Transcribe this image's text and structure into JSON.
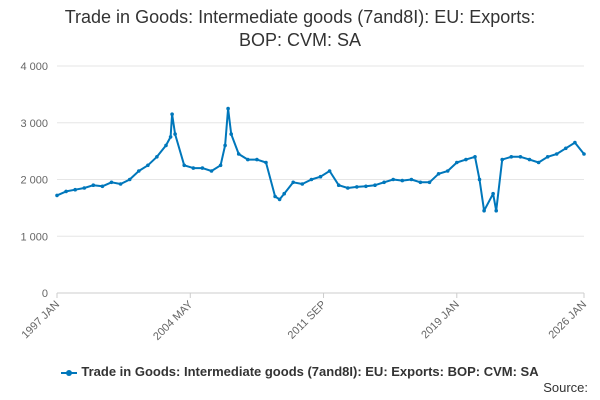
{
  "chart_data": {
    "type": "line",
    "title_lines": [
      "Trade in Goods: Intermediate goods (7and8I): EU: Exports:",
      "BOP: CVM: SA"
    ],
    "xlabel": "",
    "ylabel": "",
    "x_tick_labels": [
      "1997 JAN",
      "2004 MAY",
      "2011 SEP",
      "2019 JAN",
      "2026 JAN"
    ],
    "x_start": "1997 JAN",
    "x_end": "2026 JAN",
    "y_ticks": [
      0,
      1000,
      2000,
      3000,
      4000
    ],
    "y_tick_labels": [
      "0",
      "1 000",
      "2 000",
      "3 000",
      "4 000"
    ],
    "ylim": [
      0,
      4000
    ],
    "grid": true,
    "legend_position": "bottom",
    "series": [
      {
        "name": "Trade in Goods: Intermediate goods (7and8I): EU: Exports: BOP: CVM: SA",
        "color": "#0077bb",
        "x": [
          "1997-01",
          "1997-07",
          "1998-01",
          "1998-07",
          "1999-01",
          "1999-07",
          "2000-01",
          "2000-07",
          "2001-01",
          "2001-07",
          "2002-01",
          "2002-07",
          "2003-01",
          "2003-04",
          "2003-05",
          "2003-07",
          "2004-01",
          "2004-07",
          "2005-01",
          "2005-07",
          "2006-01",
          "2006-04",
          "2006-06",
          "2006-08",
          "2007-01",
          "2007-07",
          "2008-01",
          "2008-07",
          "2009-01",
          "2009-04",
          "2009-07",
          "2010-01",
          "2010-07",
          "2011-01",
          "2011-07",
          "2012-01",
          "2012-07",
          "2013-01",
          "2013-07",
          "2014-01",
          "2014-07",
          "2015-01",
          "2015-07",
          "2016-01",
          "2016-07",
          "2017-01",
          "2017-07",
          "2018-01",
          "2018-07",
          "2019-01",
          "2019-07",
          "2020-01",
          "2020-04",
          "2020-07",
          "2021-01",
          "2021-03",
          "2021-07",
          "2022-01",
          "2022-07",
          "2023-01",
          "2023-07",
          "2024-01",
          "2024-07",
          "2025-01",
          "2025-07",
          "2026-01"
        ],
        "values": [
          1720,
          1790,
          1820,
          1850,
          1900,
          1880,
          1950,
          1920,
          2000,
          2150,
          2250,
          2400,
          2600,
          2750,
          3150,
          2800,
          2250,
          2200,
          2200,
          2150,
          2250,
          2600,
          3250,
          2800,
          2450,
          2350,
          2350,
          2300,
          1700,
          1650,
          1750,
          1950,
          1920,
          2000,
          2050,
          2150,
          1900,
          1850,
          1870,
          1880,
          1900,
          1950,
          2000,
          1980,
          2000,
          1950,
          1950,
          2100,
          2150,
          2300,
          2350,
          2400,
          2000,
          1450,
          1750,
          1450,
          2350,
          2400,
          2400,
          2350,
          2300,
          2400,
          2450,
          2550,
          2650,
          2450
        ]
      }
    ]
  },
  "legend_label": "Trade in Goods: Intermediate goods (7and8I): EU: Exports: BOP: CVM: SA",
  "source_label": "Source:"
}
